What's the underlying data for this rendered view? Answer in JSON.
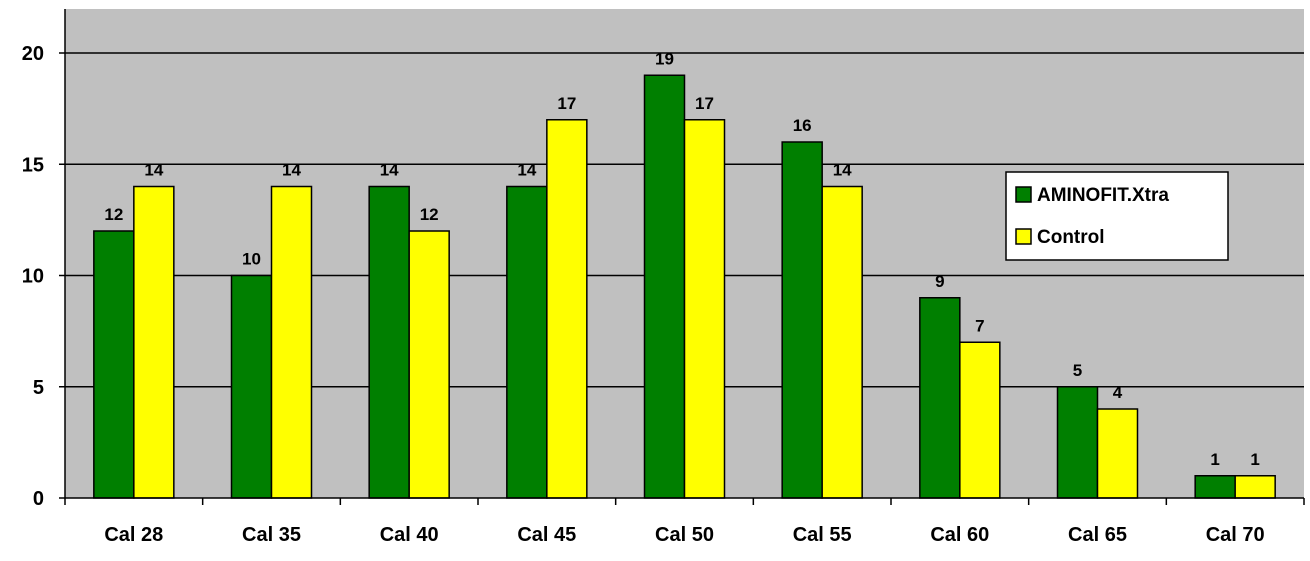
{
  "chart_data": {
    "type": "bar",
    "categories": [
      "Cal 28",
      "Cal 35",
      "Cal 40",
      "Cal 45",
      "Cal 50",
      "Cal 55",
      "Cal 60",
      "Cal 65",
      "Cal 70"
    ],
    "series": [
      {
        "name": "AMINOFIT.Xtra",
        "values": [
          12,
          10,
          14,
          14,
          19,
          16,
          9,
          5,
          1
        ],
        "color": "#007f00"
      },
      {
        "name": "Control",
        "values": [
          14,
          14,
          12,
          17,
          17,
          14,
          7,
          4,
          1
        ],
        "color": "#ffff00"
      }
    ],
    "y_ticks": [
      "0",
      "5",
      "10",
      "15",
      "20"
    ],
    "ylim": [
      0,
      20
    ],
    "grid": true,
    "plot_background": "#c0c0c0",
    "legend_position": "right"
  }
}
